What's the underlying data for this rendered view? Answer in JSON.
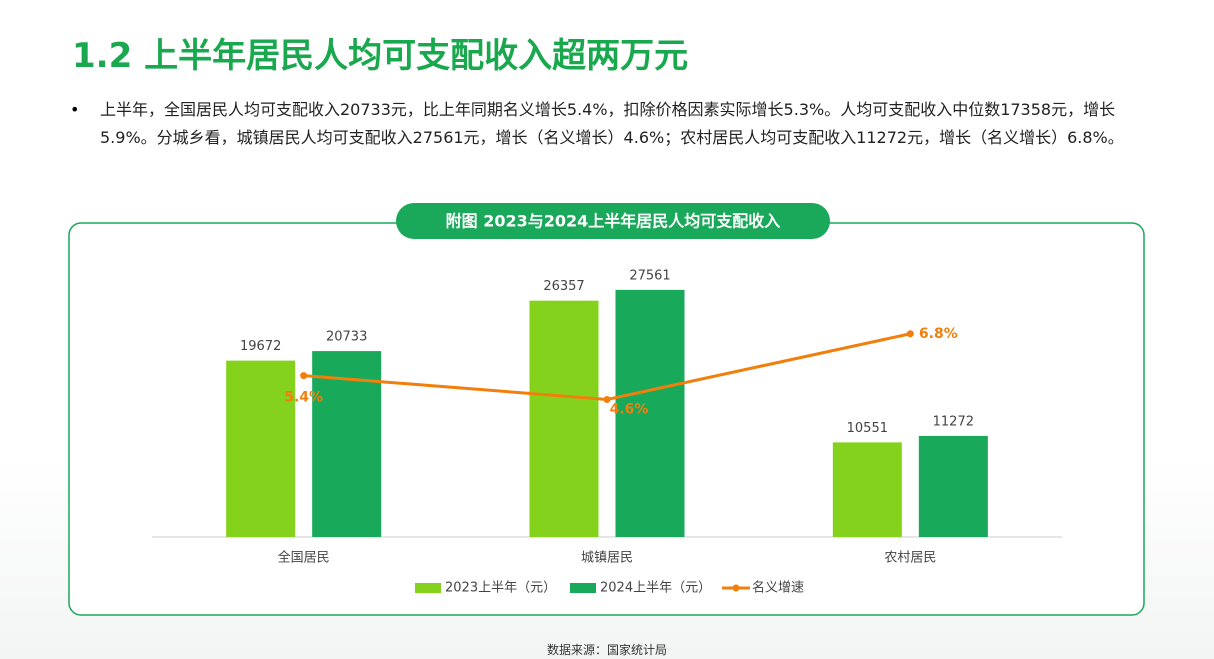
{
  "title": "1.2 上半年居民人均可支配收入超两万元",
  "bullet": "上半年，全国居民人均可支配收入20733元，比上年同期名义增长5.4%，扣除价格因素实际增长5.3%。人均可支配收入中位数17358元，增长5.9%。分城乡看，城镇居民人均可支配收入27561元，增长（名义增长）4.6%；农村居民人均可支配收入11272元，增长（名义增长）6.8%。",
  "source": "数据来源：国家统计局",
  "chart_data": {
    "type": "bar",
    "title": "附图 2023与2024上半年居民人均可支配收入",
    "categories": [
      "全国居民",
      "城镇居民",
      "农村居民"
    ],
    "ylim": [
      0,
      30000
    ],
    "y2lim": [
      0,
      9
    ],
    "series": [
      {
        "name": "2023上半年（元）",
        "color": "#84d21c",
        "values": [
          19672,
          26357,
          10551
        ]
      },
      {
        "name": "2024上半年（元）",
        "color": "#19a95a",
        "values": [
          20733,
          27561,
          11272
        ]
      },
      {
        "name": "名义增速",
        "type": "line",
        "axis": "y2",
        "color": "#f27f0c",
        "values": [
          5.4,
          4.6,
          6.8
        ],
        "value_labels": [
          "5.4%",
          "4.6%",
          "6.8%"
        ]
      }
    ],
    "legend": "bottom"
  }
}
